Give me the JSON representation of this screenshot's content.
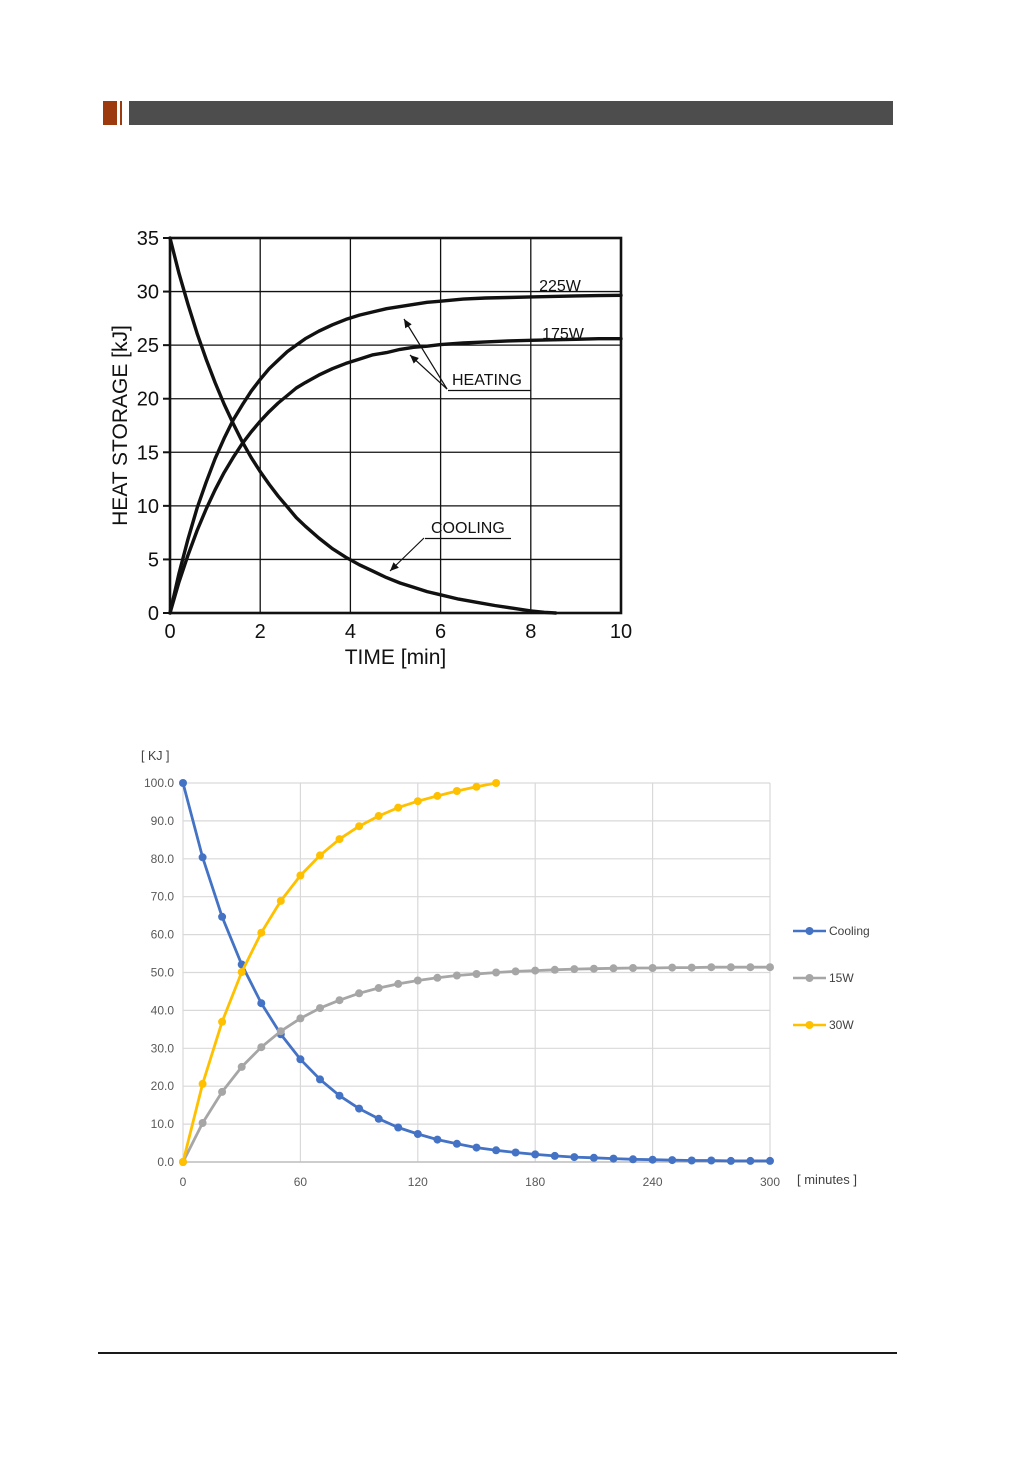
{
  "page": {
    "background": "#ffffff"
  },
  "header": {
    "accent_color": "#9c3a0d",
    "bar_color": "#4d4d4d"
  },
  "chart_data": [
    {
      "type": "line",
      "title": "",
      "xlabel": "TIME   [min]",
      "ylabel": "HEAT STORAGE   [kJ]",
      "xlim": [
        0,
        10
      ],
      "ylim": [
        0,
        35
      ],
      "xtick_values": [
        0,
        2,
        4,
        6,
        8,
        10
      ],
      "xtick_labels": [
        "0",
        "2",
        "4",
        "6",
        "8",
        "10"
      ],
      "ytick_values": [
        0,
        5,
        10,
        15,
        20,
        25,
        30,
        35
      ],
      "ytick_labels": [
        "0",
        "5",
        "10",
        "15",
        "20",
        "25",
        "30",
        "35"
      ],
      "grid": "on",
      "line_color": "#111111",
      "annotations": [
        {
          "label": "225W"
        },
        {
          "label": "175W"
        },
        {
          "label": "HEATING"
        },
        {
          "label": "COOLING"
        }
      ],
      "series": [
        {
          "name": "COOLING",
          "points": [
            [
              0,
              35
            ],
            [
              0.2,
              31.7
            ],
            [
              0.4,
              28.8
            ],
            [
              0.6,
              26.1
            ],
            [
              0.8,
              23.7
            ],
            [
              1,
              21.5
            ],
            [
              1.2,
              19.5
            ],
            [
              1.4,
              17.7
            ],
            [
              1.6,
              16.0
            ],
            [
              1.8,
              14.5
            ],
            [
              2,
              13.2
            ],
            [
              2.2,
              12.0
            ],
            [
              2.4,
              10.9
            ],
            [
              2.6,
              9.9
            ],
            [
              2.8,
              8.9
            ],
            [
              3,
              8.1
            ],
            [
              3.3,
              7.0
            ],
            [
              3.6,
              6.0
            ],
            [
              3.9,
              5.2
            ],
            [
              4.2,
              4.5
            ],
            [
              4.5,
              3.9
            ],
            [
              4.8,
              3.3
            ],
            [
              5.1,
              2.8
            ],
            [
              5.4,
              2.4
            ],
            [
              5.7,
              2.0
            ],
            [
              6,
              1.7
            ],
            [
              6.4,
              1.3
            ],
            [
              6.8,
              1.0
            ],
            [
              7.2,
              0.7
            ],
            [
              7.6,
              0.45
            ],
            [
              8,
              0.2
            ],
            [
              8.3,
              0.07
            ],
            [
              8.55,
              0
            ]
          ]
        },
        {
          "name": "HEATING 225W",
          "points": [
            [
              0,
              0
            ],
            [
              0.2,
              3.7
            ],
            [
              0.4,
              6.9
            ],
            [
              0.6,
              9.8
            ],
            [
              0.8,
              12.2
            ],
            [
              1,
              14.4
            ],
            [
              1.2,
              16.3
            ],
            [
              1.4,
              18.0
            ],
            [
              1.6,
              19.4
            ],
            [
              1.8,
              20.7
            ],
            [
              2,
              21.8
            ],
            [
              2.2,
              22.8
            ],
            [
              2.4,
              23.6
            ],
            [
              2.6,
              24.4
            ],
            [
              2.8,
              25.0
            ],
            [
              3,
              25.6
            ],
            [
              3.3,
              26.3
            ],
            [
              3.6,
              26.9
            ],
            [
              3.9,
              27.4
            ],
            [
              4.2,
              27.8
            ],
            [
              4.5,
              28.1
            ],
            [
              4.8,
              28.4
            ],
            [
              5.1,
              28.6
            ],
            [
              5.4,
              28.8
            ],
            [
              5.7,
              29.0
            ],
            [
              6,
              29.1
            ],
            [
              6.5,
              29.3
            ],
            [
              7,
              29.4
            ],
            [
              7.5,
              29.45
            ],
            [
              8,
              29.5
            ],
            [
              8.5,
              29.55
            ],
            [
              9,
              29.6
            ],
            [
              9.5,
              29.62
            ],
            [
              10,
              29.65
            ]
          ]
        },
        {
          "name": "HEATING 175W",
          "points": [
            [
              0,
              0
            ],
            [
              0.2,
              2.9
            ],
            [
              0.4,
              5.4
            ],
            [
              0.6,
              7.7
            ],
            [
              0.8,
              9.7
            ],
            [
              1,
              11.5
            ],
            [
              1.2,
              13.1
            ],
            [
              1.4,
              14.5
            ],
            [
              1.6,
              15.8
            ],
            [
              1.8,
              16.9
            ],
            [
              2,
              17.9
            ],
            [
              2.2,
              18.8
            ],
            [
              2.4,
              19.6
            ],
            [
              2.6,
              20.3
            ],
            [
              2.8,
              21.0
            ],
            [
              3,
              21.5
            ],
            [
              3.3,
              22.2
            ],
            [
              3.6,
              22.8
            ],
            [
              3.9,
              23.3
            ],
            [
              4.2,
              23.7
            ],
            [
              4.5,
              24.1
            ],
            [
              4.8,
              24.3
            ],
            [
              5.1,
              24.6
            ],
            [
              5.4,
              24.8
            ],
            [
              5.7,
              24.9
            ],
            [
              6,
              25.05
            ],
            [
              6.5,
              25.2
            ],
            [
              7,
              25.3
            ],
            [
              7.5,
              25.4
            ],
            [
              8,
              25.45
            ],
            [
              8.5,
              25.5
            ],
            [
              9,
              25.55
            ],
            [
              9.5,
              25.6
            ],
            [
              10,
              25.6
            ]
          ]
        }
      ]
    },
    {
      "type": "line",
      "title": "",
      "xlabel": "[ minutes ]",
      "ylabel": "[ KJ ]",
      "xlim": [
        0,
        300
      ],
      "ylim": [
        0,
        100
      ],
      "xtick_values": [
        0,
        60,
        120,
        180,
        240,
        300
      ],
      "xtick_labels": [
        "0",
        "60",
        "120",
        "180",
        "240",
        "300"
      ],
      "ytick_values": [
        0,
        10,
        20,
        30,
        40,
        50,
        60,
        70,
        80,
        90,
        100
      ],
      "ytick_labels": [
        "0.0",
        "10.0",
        "20.0",
        "30.0",
        "40.0",
        "50.0",
        "60.0",
        "70.0",
        "80.0",
        "90.0",
        "100.0"
      ],
      "grid": "on",
      "grid_color": "#d9d9d9",
      "tick_color": "#595959",
      "legend_position": "right",
      "legend": [
        {
          "name": "Cooling",
          "color": "#4472C4"
        },
        {
          "name": "15W",
          "color": "#A6A6A6"
        },
        {
          "name": "30W",
          "color": "#FFC000"
        }
      ],
      "series": [
        {
          "name": "Cooling",
          "color": "#4472C4",
          "x": [
            0,
            10,
            20,
            30,
            40,
            50,
            60,
            70,
            80,
            90,
            100,
            110,
            120,
            130,
            140,
            150,
            160,
            170,
            180,
            190,
            200,
            210,
            220,
            230,
            240,
            250,
            260,
            270,
            280,
            290,
            300
          ],
          "values": [
            100,
            80.4,
            64.7,
            52.1,
            41.9,
            33.7,
            27.1,
            21.8,
            17.5,
            14.1,
            11.4,
            9.1,
            7.4,
            5.9,
            4.8,
            3.8,
            3.1,
            2.5,
            2.0,
            1.6,
            1.3,
            1.1,
            0.9,
            0.7,
            0.6,
            0.5,
            0.4,
            0.4,
            0.3,
            0.3,
            0.3
          ]
        },
        {
          "name": "15W",
          "color": "#A6A6A6",
          "x": [
            0,
            10,
            20,
            30,
            40,
            50,
            60,
            70,
            80,
            90,
            100,
            110,
            120,
            130,
            140,
            150,
            160,
            170,
            180,
            190,
            200,
            210,
            220,
            230,
            240,
            250,
            260,
            270,
            280,
            290,
            300
          ],
          "values": [
            0,
            10.3,
            18.5,
            25.1,
            30.3,
            34.5,
            37.9,
            40.6,
            42.7,
            44.5,
            45.9,
            47.0,
            47.9,
            48.6,
            49.2,
            49.6,
            50.0,
            50.3,
            50.5,
            50.7,
            50.9,
            51.0,
            51.1,
            51.2,
            51.2,
            51.3,
            51.3,
            51.4,
            51.4,
            51.4,
            51.4
          ]
        },
        {
          "name": "30W",
          "color": "#FFC000",
          "x": [
            0,
            10,
            20,
            30,
            40,
            50,
            60,
            70,
            80,
            90,
            100,
            110,
            120,
            130,
            140,
            150,
            160
          ],
          "values": [
            0,
            20.6,
            37.0,
            50.1,
            60.5,
            68.9,
            75.6,
            80.9,
            85.2,
            88.6,
            91.3,
            93.5,
            95.2,
            96.6,
            97.9,
            99.0,
            100.0
          ]
        }
      ]
    }
  ]
}
